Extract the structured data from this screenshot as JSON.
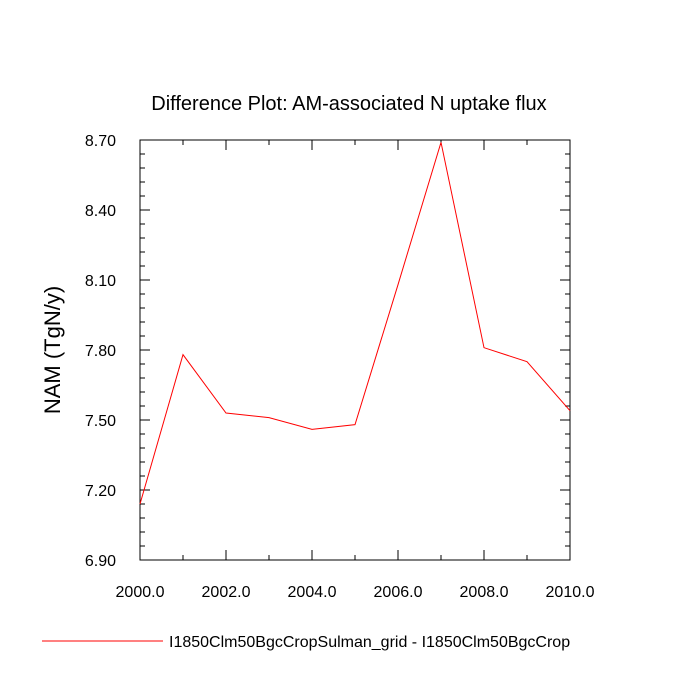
{
  "chart_data": {
    "type": "line",
    "title": "Difference Plot: AM-associated N uptake flux",
    "xlabel": "",
    "ylabel": "NAM  (TgN/y)",
    "xlim": [
      2000,
      2010
    ],
    "ylim": [
      6.9,
      8.7
    ],
    "x_ticks": [
      2000,
      2002,
      2004,
      2006,
      2008,
      2010
    ],
    "x_tick_labels": [
      "2000.0",
      "2002.0",
      "2004.0",
      "2006.0",
      "2008.0",
      "2010.0"
    ],
    "y_ticks": [
      6.9,
      7.2,
      7.5,
      7.8,
      8.1,
      8.4,
      8.7
    ],
    "y_tick_labels": [
      "6.90",
      "7.20",
      "7.50",
      "7.80",
      "8.10",
      "8.40",
      "8.70"
    ],
    "grid": false,
    "legend_position": "bottom",
    "series": [
      {
        "name": "I1850Clm50BgcCropSulman_grid - I1850Clm50BgcCrop",
        "color": "#ff0000",
        "x": [
          2000,
          2001,
          2002,
          2003,
          2004,
          2005,
          2006,
          2007,
          2008,
          2009,
          2010
        ],
        "y": [
          7.14,
          7.78,
          7.53,
          7.51,
          7.46,
          7.48,
          8.08,
          8.69,
          7.81,
          7.75,
          7.54
        ]
      }
    ]
  }
}
